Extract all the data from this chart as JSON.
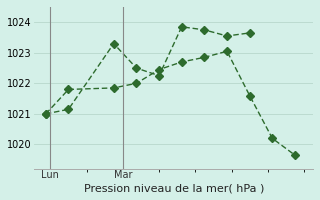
{
  "line1_x": [
    0,
    1,
    3,
    4,
    5,
    6,
    7,
    8,
    9
  ],
  "line1_y": [
    1021.0,
    1021.15,
    1023.3,
    1022.5,
    1022.25,
    1023.85,
    1023.75,
    1023.55,
    1023.65
  ],
  "line2_x": [
    0,
    1,
    3,
    4,
    5,
    6,
    7,
    8,
    9,
    10,
    11
  ],
  "line2_y": [
    1021.0,
    1021.8,
    1021.85,
    1022.0,
    1022.45,
    1022.7,
    1022.85,
    1023.05,
    1021.6,
    1020.2,
    1019.65
  ],
  "vline_x1": 0.2,
  "vline_x2": 3.4,
  "vline_label1": "Lun",
  "vline_label2": "Mar",
  "yticks": [
    1020,
    1021,
    1022,
    1023,
    1024
  ],
  "ylim": [
    1019.2,
    1024.5
  ],
  "xlim": [
    -0.5,
    11.8
  ],
  "line_color": "#2d6b2d",
  "bg_color": "#d4f0e8",
  "grid_color": "#b8d8cc",
  "vline_color": "#888888",
  "xlabel": "Pression niveau de la mer( hPa )",
  "xlabel_fontsize": 8,
  "tick_fontsize": 7,
  "label_fontsize": 7,
  "marker_size": 4,
  "linewidth": 1.0
}
